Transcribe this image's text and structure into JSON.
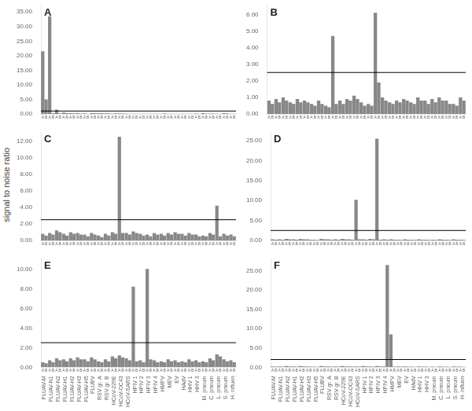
{
  "chart_data": [
    {
      "type": "bar",
      "title": "A",
      "categories": [
        null,
        null,
        null,
        null,
        null,
        null,
        null,
        null,
        null,
        null,
        null,
        null,
        null,
        null,
        null,
        null,
        null,
        null,
        null,
        null,
        null,
        null,
        null,
        null,
        null,
        null,
        null,
        null
      ],
      "series": [
        {
          "name": "A",
          "color": "#888888",
          "values": [
            21.5,
            33.5,
            1.5,
            0.5,
            0.3,
            0.3,
            0.2,
            0.3,
            0.3,
            0.2,
            0.15,
            0.2,
            0.15,
            0.1,
            0.1,
            0.1,
            0.1,
            0.1,
            0.1,
            0.1,
            0.1,
            0.1,
            0.15,
            0.3,
            0.15,
            0.1,
            0.3,
            0.1
          ]
        },
        {
          "name": "B",
          "color": "#888888",
          "values": [
            5.0,
            0.3,
            0.2,
            0.3,
            0.2,
            0.15,
            0.1,
            0.3,
            0.3,
            0.2,
            0.2,
            0.15,
            0.1,
            0.1,
            0.1,
            0.1,
            0.1,
            0.2,
            0.1,
            0.1,
            0.1,
            0.1,
            0.1,
            0.15,
            0.15,
            0.1,
            0.2,
            0.1
          ]
        }
      ],
      "ylim": [
        0,
        37
      ],
      "yticks": [
        {
          "value": 0,
          "label": "0.00"
        },
        {
          "value": 5.0,
          "label": "5.00"
        },
        {
          "value": 10.0,
          "label": "10.00"
        },
        {
          "value": 15.0,
          "label": "15.00"
        },
        {
          "value": 20.0,
          "label": "20.00"
        },
        {
          "value": 25.0,
          "label": "25.00"
        },
        {
          "value": 30.0,
          "label": "30.00"
        },
        {
          "value": 35.0,
          "label": "35.00"
        }
      ],
      "threshold": {
        "value": 1.0,
        "color": "#000000"
      },
      "grid": false
    },
    {
      "type": "bar",
      "title": "B",
      "categories": [
        null,
        null,
        null,
        null,
        null,
        null,
        null,
        null,
        null,
        null,
        null,
        null,
        null,
        null,
        null,
        null,
        null,
        null,
        null,
        null,
        null,
        null,
        null,
        null,
        null,
        null,
        null,
        null
      ],
      "series": [
        {
          "name": "A",
          "color": "#888888",
          "values": [
            0.8,
            0.9,
            1.0,
            0.7,
            0.9,
            0.8,
            0.6,
            0.8,
            0.5,
            4.7,
            0.8,
            0.9,
            1.1,
            0.7,
            0.6,
            6.1,
            1.0,
            0.7,
            0.8,
            0.9,
            0.7,
            1.0,
            0.8,
            0.9,
            1.0,
            0.8,
            0.6,
            1.0
          ]
        },
        {
          "name": "B",
          "color": "#888888",
          "values": [
            0.6,
            0.7,
            0.8,
            0.6,
            0.7,
            0.7,
            0.5,
            0.6,
            0.4,
            0.6,
            0.6,
            0.8,
            0.9,
            0.5,
            0.5,
            1.9,
            0.8,
            0.6,
            0.7,
            0.8,
            0.6,
            0.8,
            0.6,
            0.7,
            0.8,
            0.6,
            0.5,
            0.8
          ]
        }
      ],
      "ylim": [
        0,
        6.5
      ],
      "yticks": [
        {
          "value": 0,
          "label": "0.00"
        },
        {
          "value": 1.0,
          "label": "1.00"
        },
        {
          "value": 2.0,
          "label": "2.00"
        },
        {
          "value": 3.0,
          "label": "3.00"
        },
        {
          "value": 4.0,
          "label": "4.00"
        },
        {
          "value": 5.0,
          "label": "5.00"
        },
        {
          "value": 6.0,
          "label": "6.00"
        }
      ],
      "threshold": {
        "value": 2.5,
        "color": "#000000"
      },
      "grid": false
    },
    {
      "type": "bar",
      "title": "C",
      "ylabel": "signal to noise ratio",
      "categories": [
        null,
        null,
        null,
        null,
        null,
        null,
        null,
        null,
        null,
        null,
        null,
        null,
        null,
        null,
        null,
        null,
        null,
        null,
        null,
        null,
        null,
        null,
        null,
        null,
        null,
        null,
        null,
        null
      ],
      "series": [
        {
          "name": "A",
          "color": "#888888",
          "values": [
            0.8,
            0.9,
            1.2,
            0.8,
            1.0,
            0.9,
            0.7,
            0.9,
            0.6,
            0.8,
            1.0,
            12.5,
            0.9,
            1.1,
            0.8,
            0.7,
            0.9,
            0.8,
            0.9,
            1.0,
            0.8,
            0.9,
            0.7,
            0.6,
            0.9,
            4.2,
            0.8,
            0.7
          ]
        },
        {
          "name": "B",
          "color": "#888888",
          "values": [
            0.6,
            0.7,
            1.0,
            0.6,
            0.8,
            0.7,
            0.5,
            0.7,
            0.4,
            0.6,
            0.8,
            0.9,
            0.7,
            0.9,
            0.6,
            0.5,
            0.7,
            0.6,
            0.7,
            0.8,
            0.6,
            0.7,
            0.5,
            0.5,
            0.7,
            0.5,
            0.6,
            0.5
          ]
        }
      ],
      "ylim": [
        0,
        13
      ],
      "yticks": [
        {
          "value": 0,
          "label": "0.00"
        },
        {
          "value": 2.0,
          "label": "2.00"
        },
        {
          "value": 4.0,
          "label": "4.00"
        },
        {
          "value": 6.0,
          "label": "6.00"
        },
        {
          "value": 8.0,
          "label": "8.00"
        },
        {
          "value": 10.0,
          "label": "10.00"
        },
        {
          "value": 12.0,
          "label": "12.00"
        }
      ],
      "threshold": {
        "value": 2.5,
        "color": "#000000"
      },
      "grid": false
    },
    {
      "type": "bar",
      "title": "D",
      "categories": [
        null,
        null,
        null,
        null,
        null,
        null,
        null,
        null,
        null,
        null,
        null,
        null,
        null,
        null,
        null,
        null,
        null,
        null,
        null,
        null,
        null,
        null,
        null,
        null,
        null,
        null,
        null,
        null
      ],
      "series": [
        {
          "name": "A",
          "color": "#888888",
          "values": [
            0.3,
            0.3,
            0.4,
            0.3,
            0.4,
            0.3,
            0.2,
            0.4,
            0.3,
            0.3,
            0.4,
            0.3,
            10.2,
            0.3,
            0.4,
            25.5,
            0.3,
            0.3,
            0.2,
            0.3,
            0.2,
            0.3,
            0.2,
            0.2,
            0.3,
            0.2,
            0.3,
            0.2
          ]
        },
        {
          "name": "B",
          "color": "#888888",
          "values": [
            0.2,
            0.2,
            0.3,
            0.2,
            0.3,
            0.2,
            0.15,
            0.3,
            0.2,
            0.2,
            0.3,
            0.2,
            0.3,
            0.2,
            0.3,
            0.2,
            0.2,
            0.2,
            0.15,
            0.2,
            0.15,
            0.2,
            0.15,
            0.15,
            0.2,
            0.15,
            0.2,
            0.15
          ]
        }
      ],
      "ylim": [
        0,
        27
      ],
      "yticks": [
        {
          "value": 0,
          "label": "0.00"
        },
        {
          "value": 5.0,
          "label": "5.00"
        },
        {
          "value": 10.0,
          "label": "10.00"
        },
        {
          "value": 15.0,
          "label": "15.00"
        },
        {
          "value": 20.0,
          "label": "20.00"
        },
        {
          "value": 25.0,
          "label": "25.00"
        }
      ],
      "threshold": {
        "value": 2.5,
        "color": "#000000"
      },
      "grid": false
    },
    {
      "type": "bar",
      "title": "E",
      "categories": [
        "FLUAV-M",
        "FLUAV-N1",
        "FLUAV-N2",
        "FLUAV-H1",
        "FLUAV-H2",
        "FLUAV-H3",
        "FLUAV-H5",
        "FLUBV",
        "RSV gr. A",
        "RSV gr. B",
        "HCoV-229E",
        "HCoV-OC43",
        "HCoV-SARS",
        "HPIV 1",
        "HPIV 2",
        "HPIV 3",
        "HPIV 4",
        "HMPV",
        "MEV",
        "EV",
        "HAdV",
        "HHV 1",
        "HHV 3",
        "M. pneum",
        "C. pneum",
        "L. pneum",
        "S. pneum",
        "H. influen"
      ],
      "series": [
        {
          "name": "A",
          "color": "#888888",
          "values": [
            0.5,
            0.7,
            0.9,
            0.8,
            0.9,
            1.0,
            0.8,
            1.0,
            0.6,
            0.8,
            1.1,
            1.2,
            0.9,
            8.2,
            0.7,
            10.0,
            0.7,
            0.6,
            0.8,
            0.7,
            0.6,
            0.8,
            0.7,
            0.6,
            0.9,
            1.3,
            0.8,
            0.7
          ]
        },
        {
          "name": "B",
          "color": "#888888",
          "values": [
            0.4,
            0.5,
            0.7,
            0.6,
            0.7,
            0.8,
            0.6,
            0.8,
            0.5,
            0.6,
            0.9,
            1.0,
            0.7,
            0.6,
            0.5,
            0.8,
            0.5,
            0.5,
            0.6,
            0.5,
            0.5,
            0.6,
            0.5,
            0.5,
            0.7,
            1.1,
            0.6,
            0.5
          ]
        }
      ],
      "ylim": [
        0,
        11
      ],
      "yticks": [
        {
          "value": 0,
          "label": "0.00"
        },
        {
          "value": 2.0,
          "label": "2.00"
        },
        {
          "value": 4.0,
          "label": "4.00"
        },
        {
          "value": 6.0,
          "label": "6.00"
        },
        {
          "value": 8.0,
          "label": "8.00"
        },
        {
          "value": 10.0,
          "label": "10.00"
        }
      ],
      "threshold": {
        "value": 2.5,
        "color": "#000000"
      },
      "grid": false
    },
    {
      "type": "bar",
      "title": "F",
      "categories": [
        "FLUAV-M",
        "FLUAV-N1",
        "FLUAV-N2",
        "FLUAV-H1",
        "FLUAV-H2",
        "FLUAV-H3",
        "FLUAV-H5",
        "FLUBV",
        "RSV gr. A",
        "RSV gr. B",
        "HCoV-229E",
        "HCoV-OC43",
        "HCoV-SARS",
        "HPIV 1",
        "HPIV 2",
        "HPIV 3",
        "HPIV 4",
        "HMPV",
        "MEV",
        "EV",
        "HAdV",
        "HHV 1",
        "HHV 3",
        "M. pneum",
        "C. pneum",
        "L. pneum",
        "S. pneum",
        "H. influen"
      ],
      "series": [
        {
          "name": "A",
          "color": "#888888",
          "values": [
            0.2,
            0.2,
            0.3,
            0.2,
            0.3,
            0.2,
            0.15,
            0.3,
            0.2,
            0.2,
            0.3,
            0.2,
            0.2,
            0.3,
            0.2,
            0.3,
            0.2,
            8.5,
            0.2,
            0.2,
            0.15,
            0.2,
            0.15,
            0.15,
            0.2,
            0.15,
            0.2,
            0.15
          ]
        },
        {
          "name": "B",
          "color": "#888888",
          "values": [
            0.15,
            0.15,
            0.2,
            0.15,
            0.2,
            0.15,
            0.1,
            0.2,
            0.15,
            0.15,
            0.2,
            0.15,
            0.15,
            0.2,
            0.15,
            0.2,
            26.5,
            0.15,
            0.15,
            0.15,
            0.1,
            0.15,
            0.1,
            0.1,
            0.15,
            0.1,
            0.15,
            0.1
          ]
        }
      ],
      "ylim": [
        0,
        28
      ],
      "yticks": [
        {
          "value": 0,
          "label": "0.00"
        },
        {
          "value": 5.0,
          "label": "5.00"
        },
        {
          "value": 10.0,
          "label": "10.00"
        },
        {
          "value": 15.0,
          "label": "15.00"
        },
        {
          "value": 20.0,
          "label": "20.00"
        },
        {
          "value": 25.0,
          "label": "25.00"
        }
      ],
      "threshold": {
        "value": 2.0,
        "color": "#000000"
      },
      "grid": false
    }
  ]
}
